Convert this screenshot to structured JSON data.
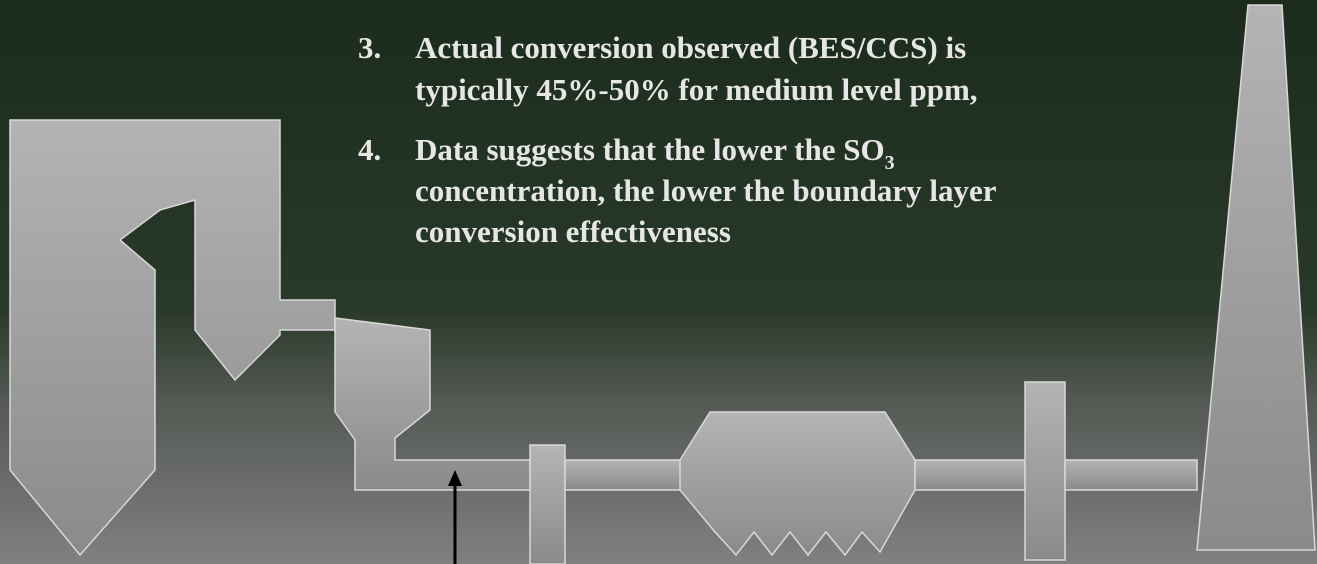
{
  "slide": {
    "items": [
      {
        "number": "3.",
        "lines": [
          "Actual conversion observed (BES/CCS) is",
          "typically 45%-50% for medium level ppm,"
        ]
      },
      {
        "number": "4.",
        "first_line_before": "Data suggests that the lower the SO",
        "first_line_subscript": "3",
        "lines": [
          "concentration, the lower the boundary layer",
          "conversion effectiveness"
        ]
      }
    ]
  }
}
